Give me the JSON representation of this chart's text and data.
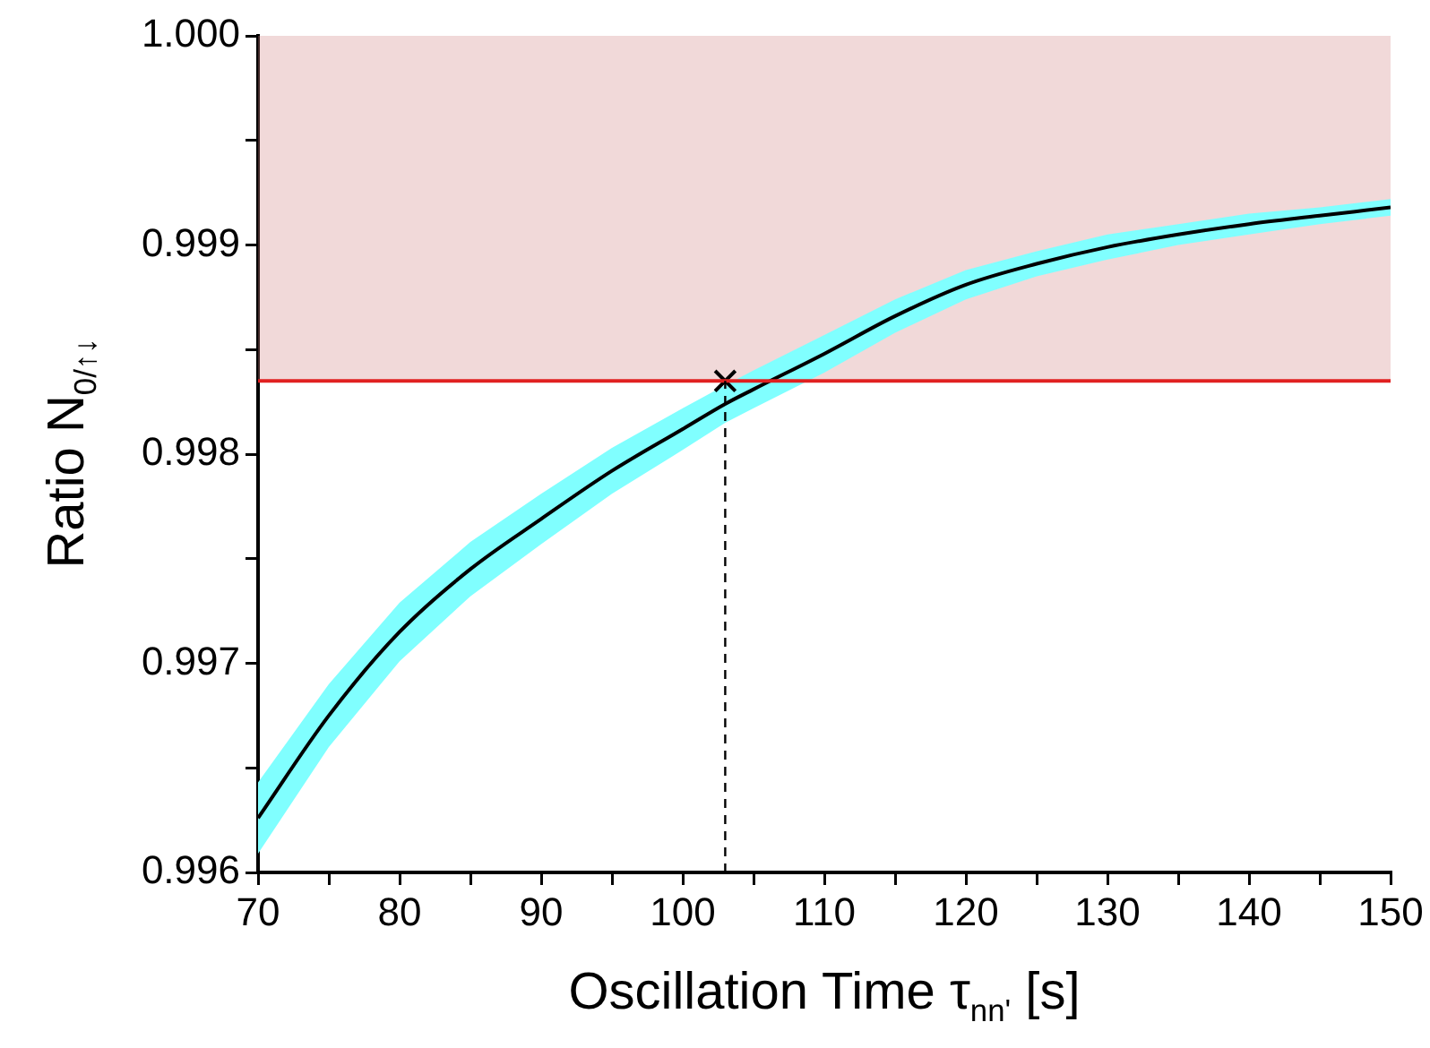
{
  "chart_data": {
    "type": "line",
    "xlabel": "Oscillation Time τ$_{nn'}$ [s]",
    "ylabel": "Ratio N$_{0/↑↓}$",
    "x": [
      70,
      75,
      80,
      85,
      90,
      95,
      100,
      103,
      105,
      110,
      115,
      120,
      125,
      130,
      135,
      140,
      145,
      150
    ],
    "series": [
      {
        "color": "#000000",
        "values": [
          0.99626,
          0.99675,
          0.99715,
          0.99745,
          0.99769,
          0.99792,
          0.99812,
          0.99824,
          0.99831,
          0.99848,
          0.99866,
          0.99881,
          0.99891,
          0.99899,
          0.99905,
          0.9991,
          0.99914,
          0.99918
        ],
        "lower": [
          0.99609,
          0.9966,
          0.99701,
          0.99732,
          0.99757,
          0.99781,
          0.99802,
          0.99815,
          0.99822,
          0.99839,
          0.99858,
          0.99874,
          0.99885,
          0.99893,
          0.999,
          0.99905,
          0.9991,
          0.99914
        ],
        "upper": [
          0.99643,
          0.9969,
          0.99729,
          0.99758,
          0.99781,
          0.99803,
          0.99822,
          0.99833,
          0.9984,
          0.99857,
          0.99874,
          0.99888,
          0.99897,
          0.99905,
          0.9991,
          0.99915,
          0.99918,
          0.99922
        ]
      },
      {
        "type": "scatter",
        "color": "#000000",
        "marker": "cross",
        "x": [
          103
        ],
        "values": [
          0.99835
        ]
      }
    ],
    "xlim": [
      70,
      150
    ],
    "xticks": [
      70,
      {
        "value": 75,
        "label": null
      },
      80,
      {
        "value": 85,
        "label": null
      },
      90,
      {
        "value": 95,
        "label": null
      },
      100,
      {
        "value": 105,
        "label": null
      },
      110,
      {
        "value": 115,
        "label": null
      },
      120,
      {
        "value": 125,
        "label": null
      },
      130,
      {
        "value": 135,
        "label": null
      },
      140,
      {
        "value": 145,
        "label": null
      },
      150
    ],
    "ylim": [
      0.996,
      1.0
    ],
    "yticks": [
      0.996,
      {
        "value": 0.9965,
        "label": null
      },
      0.997,
      {
        "value": 0.9975,
        "label": null
      },
      0.998,
      {
        "value": 0.9985,
        "label": null
      },
      0.999,
      {
        "value": 0.9995,
        "label": null
      },
      {
        "value": 1.0,
        "label": "1.000"
      }
    ],
    "ref_lines": [
      {
        "axis": "y",
        "value": 0.99835,
        "color": "#e02020"
      },
      {
        "axis": "x",
        "value": 103,
        "color": "#000000",
        "line_style": "dashed"
      }
    ],
    "bands": [
      {
        "axis": "y",
        "from": 0.99835,
        "to": 1.0,
        "color": "#d08080"
      }
    ],
    "grid": false,
    "legend": false,
    "line_style": "solid",
    "marker": "none"
  }
}
